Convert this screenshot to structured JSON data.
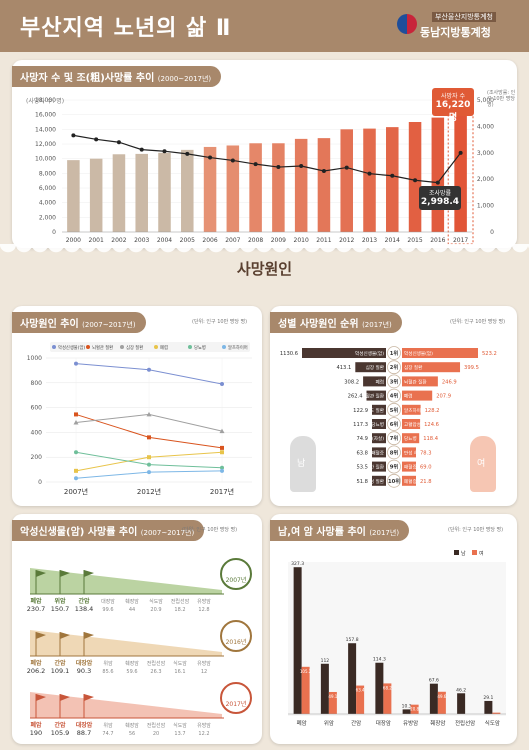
{
  "header": {
    "title": "부산지역 노년의 삶 Ⅱ",
    "org_small": "부산울산지방통계청",
    "org": "동남지방통계청"
  },
  "section_title": "사망원인",
  "panels": {
    "p1": {
      "title": "사망자 수 및 조(粗)사망률 추이",
      "period": "(2000~2017년)"
    },
    "p2": {
      "title": "사망원인 추이",
      "period": "(2007~2017년)",
      "unit": "(단위: 인구 10만 명당 명)"
    },
    "p3": {
      "title": "성별 사망원인 순위",
      "period": "(2017년)",
      "unit": "(단위: 인구 10만 명당 명)"
    },
    "p4": {
      "title": "악성신생물(암) 사망률 추이",
      "period": "(2007~2017년)",
      "unit": "(단위: 인구 10만 명당 명)"
    },
    "p5": {
      "title": "남,여 암 사망률 추이",
      "period": "(2017년)",
      "unit": "(단위: 인구 10만 명당 명)"
    }
  },
  "labels": {
    "left_axis": "(사망자 수: 명)",
    "right_axis": "(조사망률: 인구 10만 명당 명)",
    "callout_deaths_title": "사망자 수",
    "callout_deaths_value": "16,220명",
    "callout_rate_title": "조사망률",
    "callout_rate_value": "2,998.4",
    "male": "남",
    "female": "여"
  },
  "colors": {
    "brown": "#a8886b",
    "orange": "#e9714f",
    "beige": "#cbb9a6",
    "dark": "#3a2a24"
  },
  "chart_data": [
    {
      "type": "bar",
      "title": "사망자 수 및 조(粗)사망률 추이",
      "categories": [
        "2000",
        "2001",
        "2002",
        "2003",
        "2004",
        "2005",
        "2006",
        "2007",
        "2008",
        "2009",
        "2010",
        "2011",
        "2012",
        "2013",
        "2014",
        "2015",
        "2016",
        "2017"
      ],
      "series": [
        {
          "name": "사망자 수",
          "axis": "left",
          "values": [
            9800,
            10000,
            10600,
            10650,
            10800,
            11200,
            11600,
            11800,
            12100,
            12100,
            12700,
            12800,
            14000,
            14100,
            14300,
            15000,
            15600,
            16220
          ]
        },
        {
          "name": "조사망률",
          "axis": "right",
          "type": "line",
          "values": [
            3660,
            3510,
            3400,
            3120,
            3060,
            2960,
            2820,
            2710,
            2570,
            2460,
            2500,
            2310,
            2440,
            2210,
            2130,
            1960,
            1870,
            2998.4
          ]
        }
      ],
      "ylim": [
        0,
        18000
      ],
      "yticks": [
        0,
        2000,
        4000,
        6000,
        8000,
        10000,
        12000,
        14000,
        16000,
        18000
      ],
      "y2lim": [
        0,
        5000
      ],
      "y2ticks": [
        0,
        1000,
        2000,
        3000,
        4000,
        5000
      ]
    },
    {
      "type": "line",
      "title": "사망원인 추이",
      "categories": [
        "2007년",
        "2012년",
        "2017년"
      ],
      "series": [
        {
          "name": "악성신생물(암)",
          "values": [
            955,
            905,
            790
          ]
        },
        {
          "name": "뇌혈관 질환",
          "values": [
            545,
            360,
            275
          ]
        },
        {
          "name": "심장 질환",
          "values": [
            480,
            545,
            410
          ]
        },
        {
          "name": "폐렴",
          "values": [
            90,
            200,
            240
          ]
        },
        {
          "name": "당뇨병",
          "values": [
            240,
            140,
            115
          ]
        },
        {
          "name": "알츠하이머",
          "values": [
            30,
            80,
            90
          ]
        }
      ],
      "ylim": [
        0,
        1000
      ],
      "yticks": [
        0,
        200,
        400,
        600,
        800,
        1000
      ]
    },
    {
      "type": "bar",
      "title": "성별 사망원인 순위",
      "ranks": [
        "1위",
        "2위",
        "3위",
        "4위",
        "5위",
        "6위",
        "7위",
        "8위",
        "9위",
        "10위"
      ],
      "male": [
        {
          "label": "악성신생물(암)",
          "value": 1130.6
        },
        {
          "label": "심장 질환",
          "value": 413.1
        },
        {
          "label": "폐렴",
          "value": 308.2
        },
        {
          "label": "뇌혈관 질환",
          "value": 262.4
        },
        {
          "label": "만성 하기도 질환",
          "value": 122.9
        },
        {
          "label": "당뇨병",
          "value": 117.3
        },
        {
          "label": "고의적 자해(자살)",
          "value": 74.9
        },
        {
          "label": "패혈증",
          "value": 63.8
        },
        {
          "label": "간 질환",
          "value": 53.5
        },
        {
          "label": "고혈압성 질환",
          "value": 51.8
        }
      ],
      "female": [
        {
          "label": "악성신생물(암)",
          "value": 523.2
        },
        {
          "label": "심장 질환",
          "value": 399.5
        },
        {
          "label": "뇌혈관 질환",
          "value": 246.9
        },
        {
          "label": "폐렴",
          "value": 207.9
        },
        {
          "label": "알츠하이머병",
          "value": 128.2
        },
        {
          "label": "고혈압성 질환",
          "value": 124.6
        },
        {
          "label": "당뇨병",
          "value": 118.4
        },
        {
          "label": "만성 하기도 질환",
          "value": 78.3
        },
        {
          "label": "패혈증",
          "value": 69.0
        },
        {
          "label": "폐혈증",
          "value": 21.8
        }
      ]
    },
    {
      "type": "table",
      "title": "악성신생물(암) 사망률 추이",
      "years": [
        {
          "year": "2007년",
          "items": [
            {
              "label": "폐암",
              "value": "230.7"
            },
            {
              "label": "위암",
              "value": "150.7"
            },
            {
              "label": "간암",
              "value": "138.4"
            },
            {
              "label": "대장암",
              "value": "99.6"
            },
            {
              "label": "췌장암",
              "value": "44"
            },
            {
              "label": "식도암",
              "value": "20.9"
            },
            {
              "label": "전립선암",
              "value": "18.2"
            },
            {
              "label": "유방암",
              "value": "12.8"
            }
          ]
        },
        {
          "year": "2016년",
          "items": [
            {
              "label": "폐암",
              "value": "206.2"
            },
            {
              "label": "간암",
              "value": "109.1"
            },
            {
              "label": "대장암",
              "value": "90.3"
            },
            {
              "label": "위암",
              "value": "85.6"
            },
            {
              "label": "췌장암",
              "value": "59.6"
            },
            {
              "label": "전립선암",
              "value": "26.3"
            },
            {
              "label": "식도암",
              "value": "16.1"
            },
            {
              "label": "유방암",
              "value": "12"
            }
          ]
        },
        {
          "year": "2017년",
          "items": [
            {
              "label": "폐암",
              "value": "190"
            },
            {
              "label": "간암",
              "value": "105.9"
            },
            {
              "label": "대장암",
              "value": "88.7"
            },
            {
              "label": "위암",
              "value": "74.7"
            },
            {
              "label": "췌장암",
              "value": "56"
            },
            {
              "label": "전립선암",
              "value": "20"
            },
            {
              "label": "식도암",
              "value": "13.7"
            },
            {
              "label": "유방암",
              "value": "12.2"
            }
          ]
        }
      ]
    },
    {
      "type": "bar",
      "title": "남,여 암 사망률 추이",
      "categories": [
        "폐암",
        "위암",
        "간암",
        "대장암",
        "유방암",
        "췌장암",
        "전립선암",
        "식도암"
      ],
      "series": [
        {
          "name": "남",
          "values": [
            327.3,
            112.0,
            157.8,
            114.3,
            10.3,
            67.6,
            46.2,
            29.1
          ]
        },
        {
          "name": "여",
          "values": [
            105.2,
            49.1,
            63.4,
            68.2,
            20.8,
            49.6,
            null,
            3.0
          ]
        }
      ],
      "ylim": [
        0,
        330
      ]
    }
  ]
}
